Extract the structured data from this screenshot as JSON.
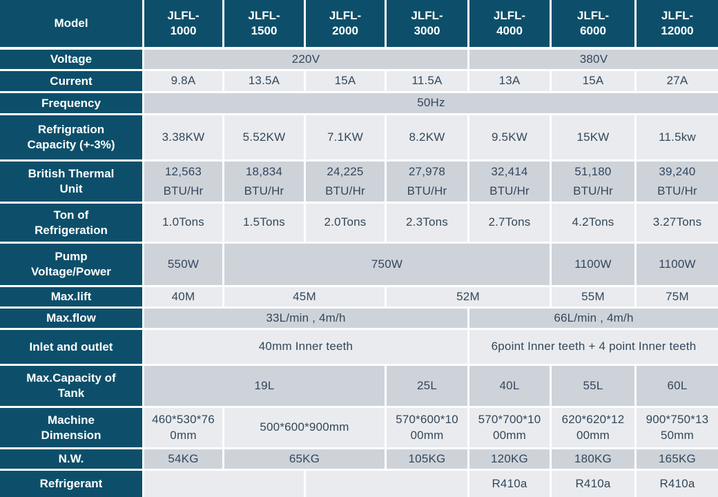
{
  "colors": {
    "header_bg": "#0d4f6a",
    "header_text": "#ffffff",
    "row_mid": "#ced3da",
    "row_light": "#e9ebee",
    "value_text": "#33475a",
    "grid": "#ffffff"
  },
  "table": {
    "header": {
      "label": "Model",
      "models": [
        "JLFL-\n1000",
        "JLFL-\n1500",
        "JLFL-\n2000",
        "JLFL-\n3000",
        "JLFL-\n4000",
        "JLFL-\n6000",
        "JLFL-\n12000"
      ]
    },
    "rows": [
      {
        "label": "Voltage",
        "shade": "mid",
        "cells": [
          {
            "text": "220V",
            "span": 4
          },
          {
            "text": "380V",
            "span": 3
          }
        ]
      },
      {
        "label": "Current",
        "shade": "light",
        "cells": [
          {
            "text": "9.8A"
          },
          {
            "text": "13.5A"
          },
          {
            "text": "15A"
          },
          {
            "text": "11.5A"
          },
          {
            "text": "13A"
          },
          {
            "text": "15A"
          },
          {
            "text": "27A"
          }
        ]
      },
      {
        "label": "Frequency",
        "shade": "mid",
        "cells": [
          {
            "text": "50Hz",
            "span": 7
          }
        ]
      },
      {
        "label": "Refrigration\nCapacity (+-3%)",
        "shade": "light",
        "cells": [
          {
            "text": "3.38KW"
          },
          {
            "text": "5.52KW"
          },
          {
            "text": "7.1KW"
          },
          {
            "text": "8.2KW"
          },
          {
            "text": "9.5KW"
          },
          {
            "text": "15KW"
          },
          {
            "text": "11.5kw"
          }
        ]
      },
      {
        "label": "British Thermal\nUnit",
        "shade": "mid",
        "row_class": "btu",
        "cells": [
          {
            "text": "12,563\nBTU/Hr"
          },
          {
            "text": "18,834\nBTU/Hr"
          },
          {
            "text": "24,225\nBTU/Hr"
          },
          {
            "text": "27,978\nBTU/Hr"
          },
          {
            "text": "32,414\nBTU/Hr"
          },
          {
            "text": "51,180\nBTU/Hr"
          },
          {
            "text": "39,240\nBTU/Hr"
          }
        ]
      },
      {
        "label": "Ton of\nRefrigeration",
        "shade": "light",
        "cells": [
          {
            "text": "1.0Tons"
          },
          {
            "text": "1.5Tons"
          },
          {
            "text": "2.0Tons"
          },
          {
            "text": "2.3Tons"
          },
          {
            "text": "2.7Tons"
          },
          {
            "text": "4.2Tons"
          },
          {
            "text": "3.27Tons"
          }
        ]
      },
      {
        "label": "Pump\nVoltage/Power",
        "shade": "mid",
        "cells": [
          {
            "text": "550W"
          },
          {
            "text": "750W",
            "span": 4
          },
          {
            "text": "1100W"
          },
          {
            "text": "1100W"
          }
        ]
      },
      {
        "label": "Max.lift",
        "shade": "light",
        "cells": [
          {
            "text": "40M"
          },
          {
            "text": "45M",
            "span": 2
          },
          {
            "text": "52M",
            "span": 2
          },
          {
            "text": "55M"
          },
          {
            "text": "75M"
          }
        ]
      },
      {
        "label": "Max.flow",
        "shade": "mid",
        "cells": [
          {
            "text": "33L/min , 4m/h",
            "span": 4
          },
          {
            "text": "66L/min , 4m/h",
            "span": 3
          }
        ]
      },
      {
        "label": "Inlet and outlet",
        "shade": "light",
        "cells": [
          {
            "text": "40mm Inner teeth",
            "span": 4
          },
          {
            "text": "6point Inner teeth + 4 point Inner teeth",
            "span": 3
          }
        ]
      },
      {
        "label": "Max.Capacity of\nTank",
        "shade": "mid",
        "cells": [
          {
            "text": "19L",
            "span": 3
          },
          {
            "text": "25L"
          },
          {
            "text": "40L"
          },
          {
            "text": "55L"
          },
          {
            "text": "60L"
          }
        ]
      },
      {
        "label": "Machine\nDimension",
        "shade": "light",
        "cells": [
          {
            "text": "460*530*76\n0mm"
          },
          {
            "text": "500*600*900mm",
            "span": 2
          },
          {
            "text": "570*600*10\n00mm"
          },
          {
            "text": "570*700*10\n00mm"
          },
          {
            "text": "620*620*12\n00mm"
          },
          {
            "text": "900*750*13\n50mm"
          }
        ]
      },
      {
        "label": "N.W.",
        "shade": "mid",
        "cells": [
          {
            "text": "54KG"
          },
          {
            "text": "65KG",
            "span": 2
          },
          {
            "text": "105KG"
          },
          {
            "text": "120KG"
          },
          {
            "text": "180KG"
          },
          {
            "text": "165KG"
          }
        ]
      },
      {
        "label": "Refrigerant",
        "shade": "light",
        "cells": [
          {
            "text": "",
            "span": 2
          },
          {
            "text": "",
            "span": 2
          },
          {
            "text": "R410a"
          },
          {
            "text": "R410a"
          },
          {
            "text": "R410a"
          }
        ]
      }
    ]
  }
}
